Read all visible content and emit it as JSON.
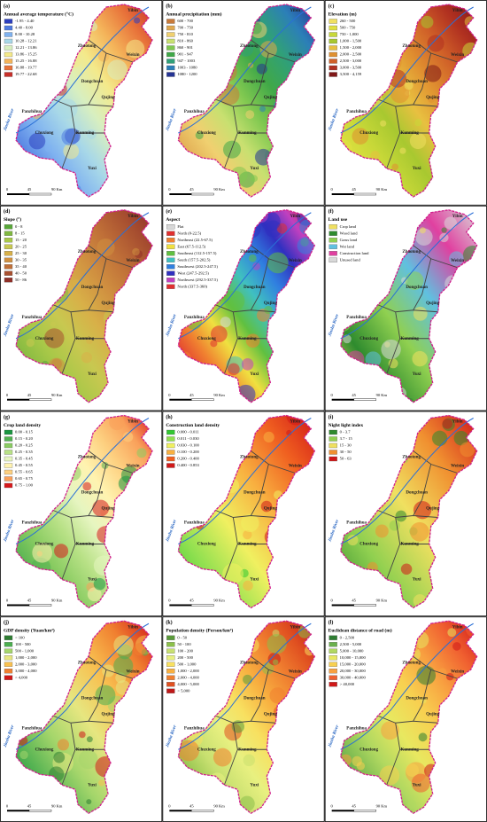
{
  "panels": [
    {
      "label": "(a)",
      "title": "Annual average temperature (°C)",
      "legend": [
        {
          "label": "-1.95 - 4.40",
          "color": "#2c3fbf"
        },
        {
          "label": "4.40 - 8.00",
          "color": "#4f7be0"
        },
        {
          "label": "8.00 - 10.28",
          "color": "#7fb2f0"
        },
        {
          "label": "10.28 - 12.21",
          "color": "#a8d8e8"
        },
        {
          "label": "12.21 - 13.86",
          "color": "#d8efc0"
        },
        {
          "label": "13.86 - 15.25",
          "color": "#f4e98a"
        },
        {
          "label": "15.25 - 16.88",
          "color": "#f4b45a"
        },
        {
          "label": "16.88 - 19.77",
          "color": "#e8733a"
        },
        {
          "label": "19.77 - 22.68",
          "color": "#c8302a"
        }
      ]
    },
    {
      "label": "(b)",
      "title": "Annual precipitation (mm)",
      "legend": [
        {
          "label": "600 - 700",
          "color": "#c87a3a"
        },
        {
          "label": "700 - 750",
          "color": "#e0a850"
        },
        {
          "label": "750 - 810",
          "color": "#f0d070"
        },
        {
          "label": "810 - 860",
          "color": "#c8e070"
        },
        {
          "label": "860 - 901",
          "color": "#80c850"
        },
        {
          "label": "901 - 947",
          "color": "#40a848"
        },
        {
          "label": "947 - 1003",
          "color": "#30a078"
        },
        {
          "label": "1003 - 1080",
          "color": "#2c7fb8"
        },
        {
          "label": "1080 - 1200",
          "color": "#253494"
        }
      ]
    },
    {
      "label": "(c)",
      "title": "Elevation (m)",
      "legend": [
        {
          "label": "260 - 500",
          "color": "#f0e060"
        },
        {
          "label": "500 - 750",
          "color": "#e0e040"
        },
        {
          "label": "750 - 1,000",
          "color": "#c8d838"
        },
        {
          "label": "1,000 - 1,500",
          "color": "#a8c830"
        },
        {
          "label": "1,500 - 2,000",
          "color": "#e8c040"
        },
        {
          "label": "2,000 - 2,500",
          "color": "#e09030"
        },
        {
          "label": "2,500 - 3,000",
          "color": "#d06028"
        },
        {
          "label": "3,000 - 3,500",
          "color": "#b03020"
        },
        {
          "label": "3,500 - 4,159",
          "color": "#801818"
        }
      ]
    },
    {
      "label": "(d)",
      "title": "Slope (°)",
      "legend": [
        {
          "label": "0 - 8",
          "color": "#58a838"
        },
        {
          "label": "8 - 15",
          "color": "#80b840"
        },
        {
          "label": "15 - 20",
          "color": "#a8c848"
        },
        {
          "label": "20 - 25",
          "color": "#c8c850"
        },
        {
          "label": "25 - 30",
          "color": "#d8b048"
        },
        {
          "label": "30 - 35",
          "color": "#d09040"
        },
        {
          "label": "35 - 40",
          "color": "#c07038"
        },
        {
          "label": "40 - 50",
          "color": "#a85030"
        },
        {
          "label": "50 - 86",
          "color": "#903028"
        }
      ]
    },
    {
      "label": "(e)",
      "title": "Aspect",
      "legend": [
        {
          "label": "Flat",
          "color": "#d8d8d8"
        },
        {
          "label": "North (0-22.5)",
          "color": "#e03030"
        },
        {
          "label": "Northeast (22.5-67.5)",
          "color": "#f08030"
        },
        {
          "label": "East (67.5-112.5)",
          "color": "#f0e040"
        },
        {
          "label": "Southeast (112.5-157.5)",
          "color": "#60c040"
        },
        {
          "label": "South (157.5-202.5)",
          "color": "#40c0c0"
        },
        {
          "label": "Southwest (202.5-247.5)",
          "color": "#3080e0"
        },
        {
          "label": "West (247.5-292.5)",
          "color": "#3030c0"
        },
        {
          "label": "Northwest (292.5-337.5)",
          "color": "#c040c0"
        },
        {
          "label": "North (337.5-360)",
          "color": "#e03030"
        }
      ]
    },
    {
      "label": "(f)",
      "title": "Land use",
      "legend": [
        {
          "label": "Crop land",
          "color": "#f0e060"
        },
        {
          "label": "Wood land",
          "color": "#2e8b2e"
        },
        {
          "label": "Grass land",
          "color": "#90d050"
        },
        {
          "label": "Wet land",
          "color": "#60c0e0"
        },
        {
          "label": "Construction land",
          "color": "#e040a0"
        },
        {
          "label": "Unused land",
          "color": "#d8d8d8"
        }
      ]
    },
    {
      "label": "(g)",
      "title": "Crop land density",
      "legend": [
        {
          "label": "0.00 - 0.15",
          "color": "#1a9641"
        },
        {
          "label": "0.15 - 0.20",
          "color": "#52b151"
        },
        {
          "label": "0.20 - 0.25",
          "color": "#8acc62"
        },
        {
          "label": "0.25 - 0.35",
          "color": "#b8e186"
        },
        {
          "label": "0.35 - 0.45",
          "color": "#e6f5c0"
        },
        {
          "label": "0.45 - 0.55",
          "color": "#fff3b0"
        },
        {
          "label": "0.55 - 0.65",
          "color": "#fdd080"
        },
        {
          "label": "0.65 - 0.75",
          "color": "#f9a05a"
        },
        {
          "label": "0.75 - 1.00",
          "color": "#d7191c"
        }
      ]
    },
    {
      "label": "(h)",
      "title": "Construction land density",
      "legend": [
        {
          "label": "0.000 - 0.011",
          "color": "#32c832"
        },
        {
          "label": "0.011 - 0.030",
          "color": "#90e050"
        },
        {
          "label": "0.030 - 0.100",
          "color": "#f0f060"
        },
        {
          "label": "0.100 - 0.200",
          "color": "#f8b040"
        },
        {
          "label": "0.200 - 0.400",
          "color": "#f06020"
        },
        {
          "label": "0.400 - 0.853",
          "color": "#d01818"
        }
      ]
    },
    {
      "label": "(i)",
      "title": "Night light index",
      "legend": [
        {
          "label": "0 - 3.7",
          "color": "#2e8b2e"
        },
        {
          "label": "3.7 - 15",
          "color": "#90d050"
        },
        {
          "label": "15 - 30",
          "color": "#f0e060"
        },
        {
          "label": "30 - 50",
          "color": "#f09030"
        },
        {
          "label": "50 - 63",
          "color": "#d01818"
        }
      ]
    },
    {
      "label": "(j)",
      "title": "GDP density (Yuan/km²)",
      "legend": [
        {
          "label": "< 100",
          "color": "#2e7d32"
        },
        {
          "label": "100 - 500",
          "color": "#4caf50"
        },
        {
          "label": "500 - 1,000",
          "color": "#a5d66b"
        },
        {
          "label": "1,000 - 2,000",
          "color": "#e6e680"
        },
        {
          "label": "2,000 - 3,000",
          "color": "#f8c050"
        },
        {
          "label": "3,000 - 4,000",
          "color": "#f08030"
        },
        {
          "label": "> 4,000",
          "color": "#d01818"
        }
      ]
    },
    {
      "label": "(k)",
      "title": "Population density (Person/km²)",
      "legend": [
        {
          "label": "0 - 50",
          "color": "#5a9a3a"
        },
        {
          "label": "50 - 100",
          "color": "#8cc04a"
        },
        {
          "label": "100 - 200",
          "color": "#c8e070"
        },
        {
          "label": "200 - 500",
          "color": "#e8f080"
        },
        {
          "label": "500 - 1,000",
          "color": "#f8e060"
        },
        {
          "label": "1,000 - 2,000",
          "color": "#f8b040"
        },
        {
          "label": "2,000 - 4,000",
          "color": "#f08030"
        },
        {
          "label": "4,000 - 5,000",
          "color": "#e05020"
        },
        {
          "label": "> 5,000",
          "color": "#c01818"
        }
      ]
    },
    {
      "label": "(l)",
      "title": "Euclidean distance of road (m)",
      "legend": [
        {
          "label": "0 - 2,500",
          "color": "#2e7d32"
        },
        {
          "label": "2,500 - 5,000",
          "color": "#6ab04c"
        },
        {
          "label": "5,000 - 10,000",
          "color": "#b0d860"
        },
        {
          "label": "10,000 - 15,000",
          "color": "#e8e860"
        },
        {
          "label": "15,000 - 20,000",
          "color": "#f8d050"
        },
        {
          "label": "20,000 - 30,000",
          "color": "#f8a040"
        },
        {
          "label": "30,000 - 40,000",
          "color": "#f06030"
        },
        {
          "label": "> 40,000",
          "color": "#d01818"
        }
      ]
    }
  ],
  "places": [
    "Yibin",
    "Zhaotong",
    "Weixin",
    "Dongchuan",
    "Qujing",
    "Panzhihua",
    "Chuxiong",
    "Kunming",
    "Yuxi"
  ],
  "river": "Jinsha River",
  "scale_bar": [
    "0",
    "45",
    "90 Km"
  ]
}
